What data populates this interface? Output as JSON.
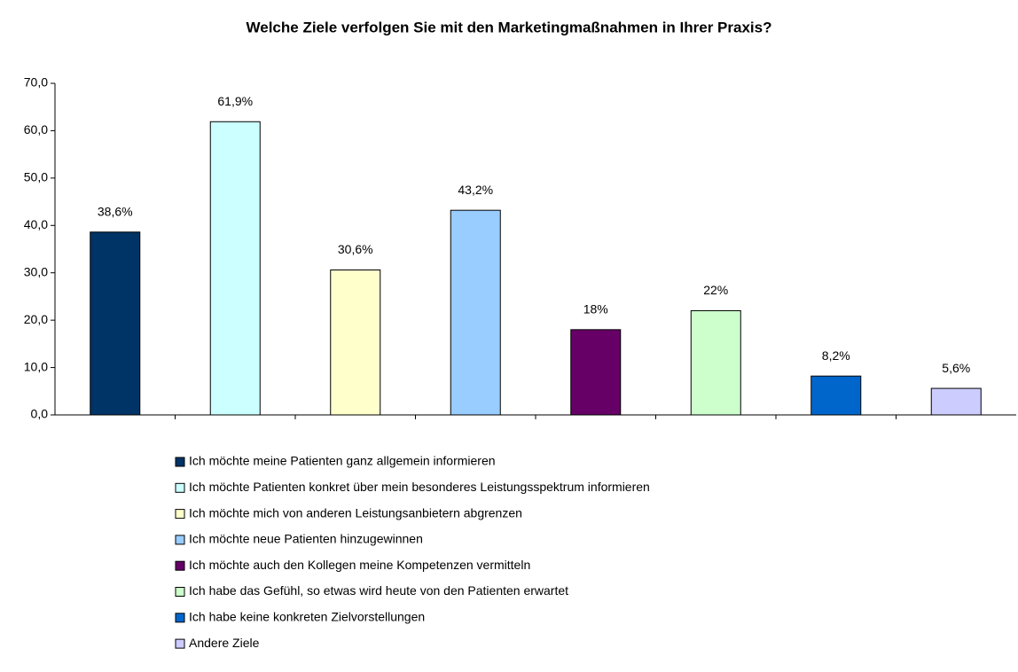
{
  "chart_data": {
    "type": "bar",
    "title": "Welche Ziele verfolgen Sie mit den Marketingmaßnahmen in Ihrer Praxis?",
    "series": [
      {
        "name": "Ich möchte meine Patienten ganz allgemein informieren",
        "color": "#003366",
        "values": [
          38.6
        ],
        "value_labels": [
          "38,6%"
        ]
      },
      {
        "name": "Ich möchte Patienten konkret über mein besonderes Leistungsspektrum informieren",
        "color": "#ccffff",
        "values": [
          61.9
        ],
        "value_labels": [
          "61,9%"
        ]
      },
      {
        "name": "Ich möchte mich von anderen Leistungsanbietern abgrenzen",
        "color": "#ffffcc",
        "values": [
          30.6
        ],
        "value_labels": [
          "30,6%"
        ]
      },
      {
        "name": "Ich möchte neue Patienten hinzugewinnen",
        "color": "#99ccff",
        "values": [
          43.2
        ],
        "value_labels": [
          "43,2%"
        ]
      },
      {
        "name": "Ich möchte auch den Kollegen meine Kompetenzen vermitteln",
        "color": "#660066",
        "values": [
          18
        ],
        "value_labels": [
          "18%"
        ]
      },
      {
        "name": "Ich habe das Gefühl, so etwas wird heute von den Patienten erwartet",
        "color": "#ccffcc",
        "values": [
          22
        ],
        "value_labels": [
          "22%"
        ]
      },
      {
        "name": "Ich habe keine konkreten Zielvorstellungen",
        "color": "#0066cc",
        "values": [
          8.2
        ],
        "value_labels": [
          "8,2%"
        ]
      },
      {
        "name": "Andere Ziele",
        "color": "#ccccff",
        "values": [
          5.6
        ],
        "value_labels": [
          "5,6%"
        ]
      }
    ],
    "ylim": [
      0,
      70
    ],
    "yticks": [
      {
        "value": 0,
        "label": "0,0"
      },
      {
        "value": 10,
        "label": "10,0"
      },
      {
        "value": 20,
        "label": "20,0"
      },
      {
        "value": 30,
        "label": "30,0"
      },
      {
        "value": 40,
        "label": "40,0"
      },
      {
        "value": 50,
        "label": "50,0"
      },
      {
        "value": 60,
        "label": "60,0"
      },
      {
        "value": 70,
        "label": "70,0"
      }
    ],
    "legend": "bottom"
  }
}
